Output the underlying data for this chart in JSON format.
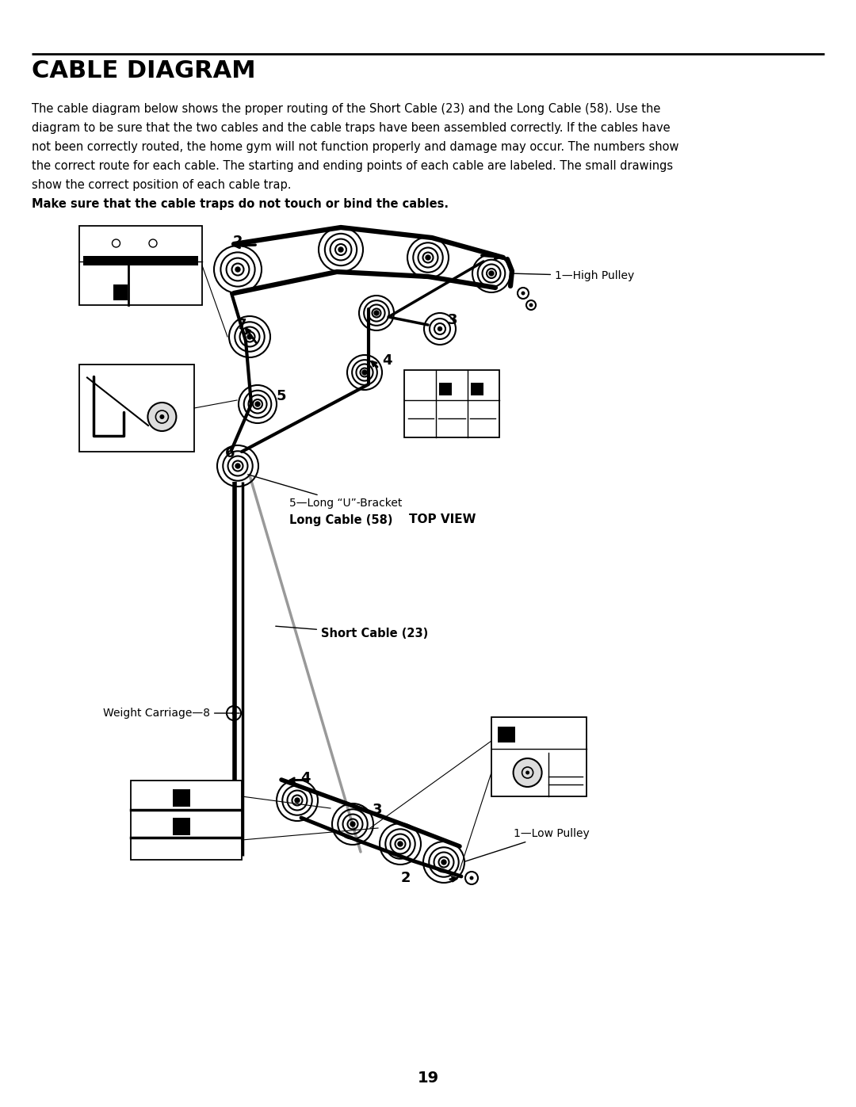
{
  "title": "CABLE DIAGRAM",
  "body_normal": "The cable diagram below shows the proper routing of the Short Cable (23) and the Long Cable (58). Use the diagram to be sure that the two cables and the cable traps have been assembled correctly. If the cables have not been correctly routed, the home gym will not function properly and damage may occur. The numbers show the correct route for each cable. The starting and ending points of each cable are labeled. The small drawings show the correct position of each cable trap. ",
  "body_bold": "Make sure that the cable traps do not touch or bind the cables.",
  "page_number": "19",
  "bg_color": "#ffffff",
  "long_cable_label": "Long Cable (58)",
  "short_cable_label": "Short Cable (23)",
  "top_view_label": "TOP VIEW",
  "high_pulley_label": "1—High Pulley",
  "low_pulley_label": "1—Low Pulley",
  "weight_carriage_label": "Weight Carriage—8",
  "long_u_bracket_label": "5—Long “U”-Bracket"
}
